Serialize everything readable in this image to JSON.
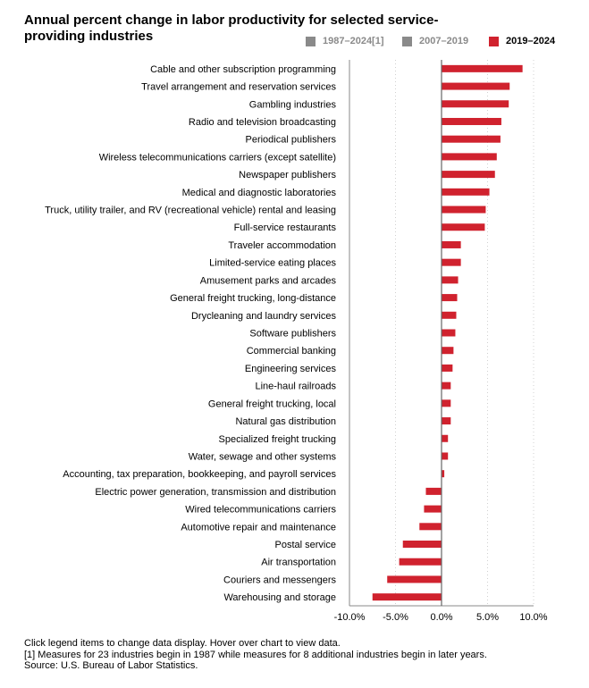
{
  "chart_data": {
    "type": "bar",
    "orientation": "horizontal",
    "title": "Annual percent change in labor productivity for selected service-providing industries",
    "categories": [
      "Cable and other subscription programming",
      "Travel arrangement and reservation services",
      "Gambling industries",
      "Radio and television broadcasting",
      "Periodical publishers",
      "Wireless telecommunications carriers (except satellite)",
      "Newspaper publishers",
      "Medical and diagnostic laboratories",
      "Truck, utility trailer, and RV (recreational vehicle) rental and leasing",
      "Full-service restaurants",
      "Traveler accommodation",
      "Limited-service eating places",
      "Amusement parks and arcades",
      "General freight trucking, long-distance",
      "Drycleaning and laundry services",
      "Software publishers",
      "Commercial banking",
      "Engineering services",
      "Line-haul railroads",
      "General freight trucking, local",
      "Natural gas distribution",
      "Specialized freight trucking",
      "Water, sewage and other systems",
      "Accounting, tax preparation, bookkeeping, and payroll services",
      "Electric power generation, transmission and distribution",
      "Wired telecommunications carriers",
      "Automotive repair and maintenance",
      "Postal service",
      "Air transportation",
      "Couriers and messengers",
      "Warehousing and storage"
    ],
    "series": [
      {
        "name": "2019–2024",
        "values": [
          8.8,
          7.4,
          7.3,
          6.5,
          6.4,
          6.0,
          5.8,
          5.2,
          4.8,
          4.7,
          2.1,
          2.1,
          1.8,
          1.7,
          1.6,
          1.5,
          1.3,
          1.2,
          1.0,
          1.0,
          1.0,
          0.7,
          0.7,
          0.3,
          -1.7,
          -1.9,
          -2.4,
          -4.2,
          -4.6,
          -5.9,
          -7.5
        ]
      }
    ],
    "legend": [
      {
        "name": "1987–2024[1]",
        "color": "#8a8a8a",
        "active": false
      },
      {
        "name": "2007–2019",
        "color": "#8a8a8a",
        "active": false
      },
      {
        "name": "2019–2024",
        "color": "#d0222e",
        "active": true
      }
    ],
    "xlim": [
      -10,
      10
    ],
    "xticks": [
      -10,
      -5,
      0,
      5,
      10
    ],
    "xtick_labels": [
      "-10.0%",
      "-5.0%",
      "0.0%",
      "5.0%",
      "10.0%"
    ],
    "grid": true,
    "legend_position": "top-right",
    "bar_color": "#d0222e"
  },
  "footer": {
    "note1": "Click legend items to change data display. Hover over chart to view data.",
    "note2": "[1] Measures for 23 industries begin in 1987 while measures for 8 additional industries begin in later years.",
    "source": "Source: U.S. Bureau of Labor Statistics."
  }
}
